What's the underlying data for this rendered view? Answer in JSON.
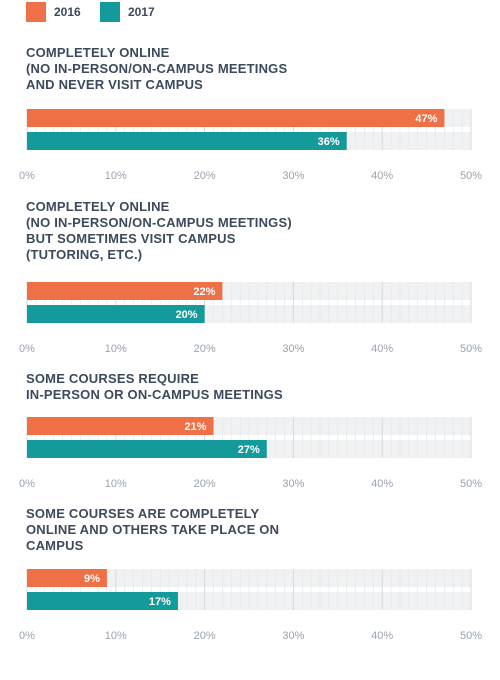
{
  "legend": [
    {
      "name": "2016",
      "color": "#ef7047"
    },
    {
      "name": "2017",
      "color": "#159a9c"
    }
  ],
  "chart_data": [
    {
      "type": "bar",
      "orientation": "horizontal",
      "title_lines": [
        "COMPLETELY ONLINE",
        "(NO IN-PERSON/ON-CAMPUS MEETINGS",
        "AND NEVER VISIT CAMPUS"
      ],
      "series": [
        {
          "name": "2016",
          "values": [
            47
          ],
          "labels": [
            "47%"
          ]
        },
        {
          "name": "2017",
          "values": [
            36
          ],
          "labels": [
            "36%"
          ]
        }
      ],
      "xlim": [
        0,
        50
      ],
      "ticks": [
        0,
        10,
        20,
        30,
        40,
        50
      ],
      "tick_labels": [
        "0%",
        "10%",
        "20%",
        "30%",
        "40%",
        "50%"
      ],
      "legend_position": "top-left"
    },
    {
      "type": "bar",
      "orientation": "horizontal",
      "title_lines": [
        "COMPLETELY ONLINE",
        "(NO IN-PERSON/ON-CAMPUS MEETINGS)",
        "BUT SOMETIMES VISIT CAMPUS",
        "(TUTORING, ETC.)"
      ],
      "series": [
        {
          "name": "2016",
          "values": [
            22
          ],
          "labels": [
            "22%"
          ]
        },
        {
          "name": "2017",
          "values": [
            20
          ],
          "labels": [
            "20%"
          ]
        }
      ],
      "xlim": [
        0,
        50
      ],
      "ticks": [
        0,
        10,
        20,
        30,
        40,
        50
      ],
      "tick_labels": [
        "0%",
        "10%",
        "20%",
        "30%",
        "40%",
        "50%"
      ]
    },
    {
      "type": "bar",
      "orientation": "horizontal",
      "title_lines": [
        "SOME COURSES REQUIRE",
        "IN-PERSON OR ON-CAMPUS MEETINGS"
      ],
      "series": [
        {
          "name": "2016",
          "values": [
            21
          ],
          "labels": [
            "21%"
          ]
        },
        {
          "name": "2017",
          "values": [
            27
          ],
          "labels": [
            "27%"
          ]
        }
      ],
      "xlim": [
        0,
        50
      ],
      "ticks": [
        0,
        10,
        20,
        30,
        40,
        50
      ],
      "tick_labels": [
        "0%",
        "10%",
        "20%",
        "30%",
        "40%",
        "50%"
      ]
    },
    {
      "type": "bar",
      "orientation": "horizontal",
      "title_lines": [
        "SOME COURSES ARE COMPLETELY",
        "ONLINE AND OTHERS TAKE PLACE ON",
        "CAMPUS"
      ],
      "series": [
        {
          "name": "2016",
          "values": [
            9
          ],
          "labels": [
            "9%"
          ]
        },
        {
          "name": "2017",
          "values": [
            17
          ],
          "labels": [
            "17%"
          ]
        }
      ],
      "xlim": [
        0,
        50
      ],
      "ticks": [
        0,
        10,
        20,
        30,
        40,
        50
      ],
      "tick_labels": [
        "0%",
        "10%",
        "20%",
        "30%",
        "40%",
        "50%"
      ]
    }
  ],
  "colors": {
    "bar_2016": "#ef7047",
    "bar_2017": "#159a9c",
    "track": "#f0f1f2",
    "grid": "#e3e5e7",
    "title": "#3d4a5c",
    "tick": "#9aa3ad"
  }
}
